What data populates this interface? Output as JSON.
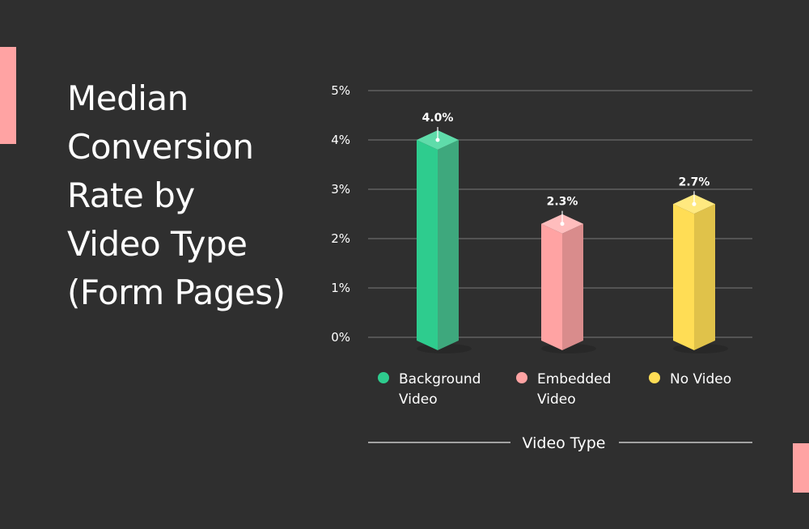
{
  "title_lines": [
    "Median",
    "Conversion",
    "Rate by",
    "Video Type",
    "(Form Pages)"
  ],
  "colors": {
    "background": "#2f2f2f",
    "accent": "#ffa3a3",
    "grid": "#6b6b6b"
  },
  "chart_data": {
    "type": "bar",
    "xlabel": "Video Type",
    "ylim": [
      0,
      5
    ],
    "y_ticks": [
      "0%",
      "1%",
      "2%",
      "3%",
      "4%",
      "5%"
    ],
    "grid": true,
    "legend_position": "bottom",
    "categories": [
      {
        "label_lines": [
          "Background",
          "Video"
        ],
        "value": 4.0,
        "value_label": "4.0%",
        "color": "#2ecc8e",
        "side_color": "#3ea87d",
        "top_color": "#5fdcaa"
      },
      {
        "label_lines": [
          "Embedded",
          "Video"
        ],
        "value": 2.3,
        "value_label": "2.3%",
        "color": "#ffa3a3",
        "side_color": "#d98c8c",
        "top_color": "#ffbdbd"
      },
      {
        "label_lines": [
          "No Video"
        ],
        "value": 2.7,
        "value_label": "2.7%",
        "color": "#ffdd55",
        "side_color": "#e0c24a",
        "top_color": "#ffe97f"
      }
    ]
  }
}
